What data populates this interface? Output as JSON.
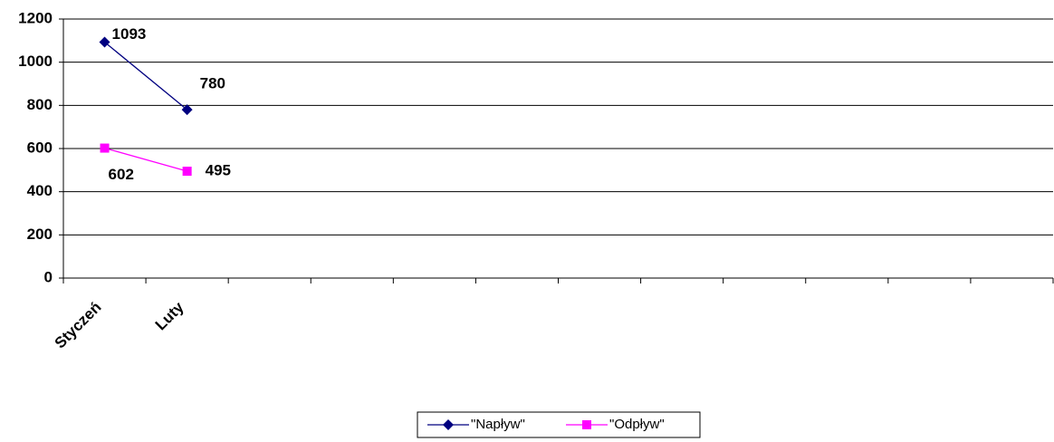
{
  "chart_data": {
    "type": "line",
    "categories": [
      "Styczeń",
      "Luty",
      null,
      null,
      null,
      null,
      null,
      null,
      null,
      null,
      null,
      null
    ],
    "series": [
      {
        "name": "\"Napływ\"",
        "color": "#000080",
        "marker": "diamond",
        "values": [
          1093,
          780,
          null,
          null,
          null,
          null,
          null,
          null,
          null,
          null,
          null,
          null
        ]
      },
      {
        "name": "\"Odpływ\"",
        "color": "#ff00ff",
        "marker": "square",
        "values": [
          602,
          495,
          null,
          null,
          null,
          null,
          null,
          null,
          null,
          null,
          null,
          null
        ]
      }
    ],
    "ylim": [
      0,
      1200
    ],
    "yticks": [
      0,
      200,
      400,
      600,
      800,
      1000,
      1200
    ],
    "grid": true,
    "legend": "bottom"
  }
}
